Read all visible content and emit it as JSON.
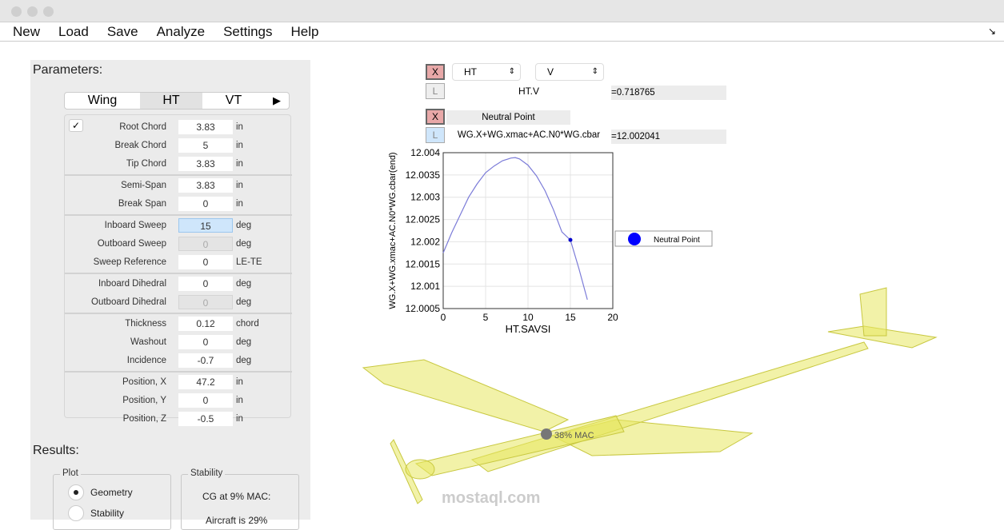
{
  "menu": [
    "New",
    "Load",
    "Save",
    "Analyze",
    "Settings",
    "Help"
  ],
  "parameters": {
    "title": "Parameters:",
    "tabs": [
      "Wing",
      "HT",
      "VT"
    ],
    "active_tab": "HT",
    "more_icon": "play-triangle",
    "checkbox_checked": true,
    "rows": [
      {
        "label": "Root Chord",
        "value": "3.83",
        "unit": "in"
      },
      {
        "label": "Break Chord",
        "value": "5",
        "unit": "in"
      },
      {
        "label": "Tip Chord",
        "value": "3.83",
        "unit": "in"
      },
      {
        "label": "Semi-Span",
        "value": "3.83",
        "unit": "in"
      },
      {
        "label": "Break Span",
        "value": "0",
        "unit": "in"
      },
      {
        "label": "Inboard Sweep",
        "value": "15",
        "unit": "deg",
        "state": "selected"
      },
      {
        "label": "Outboard Sweep",
        "value": "0",
        "unit": "deg",
        "state": "disabled"
      },
      {
        "label": "Sweep Reference",
        "value": "0",
        "unit": "LE-TE"
      },
      {
        "label": "Inboard Dihedral",
        "value": "0",
        "unit": "deg"
      },
      {
        "label": "Outboard Dihedral",
        "value": "0",
        "unit": "deg",
        "state": "disabled"
      },
      {
        "label": "Thickness",
        "value": "0.12",
        "unit": "chord"
      },
      {
        "label": "Washout",
        "value": "0",
        "unit": "deg"
      },
      {
        "label": "Incidence",
        "value": "-0.7",
        "unit": "deg"
      },
      {
        "label": "Position, X",
        "value": "47.2",
        "unit": "in"
      },
      {
        "label": "Position, Y",
        "value": "0",
        "unit": "in"
      },
      {
        "label": "Position, Z",
        "value": "-0.5",
        "unit": "in"
      }
    ]
  },
  "results": {
    "title": "Results:",
    "plot_group": "Plot",
    "plot_options": [
      "Geometry",
      "Stability"
    ],
    "plot_selected": "Geometry",
    "stability_group": "Stability",
    "stability_lines": [
      "CG at 9% MAC:",
      "Aircraft is 29%"
    ]
  },
  "plot_controls": {
    "x_btn": "X",
    "l_btn": "L",
    "select1": "HT",
    "select2": "V",
    "expr1": "HT.V",
    "readout1": "=0.718765",
    "label2": "Neutral Point",
    "expr2": "WG.X+WG.xmac+AC.N0*WG.cbar",
    "readout2": "=12.002041"
  },
  "chart_data": {
    "type": "line",
    "xlabel": "HT.SAVSI",
    "ylabel": "WG.X+WG.xmac+AC.N0*WG.cbar(end)",
    "xlim": [
      0,
      20
    ],
    "ylim": [
      12.0005,
      12.004
    ],
    "xticks": [
      "0",
      "5",
      "10",
      "15",
      "20"
    ],
    "yticks": [
      "12.0005",
      "12.001",
      "12.0015",
      "12.002",
      "12.0025",
      "12.003",
      "12.0035",
      "12.004"
    ],
    "grid": true,
    "series": [
      {
        "x": [
          0,
          1,
          2,
          3,
          4,
          5,
          6,
          7,
          8,
          8.5,
          9,
          10,
          11,
          12,
          13,
          14,
          15,
          16,
          17
        ],
        "y": [
          12.00175,
          12.0022,
          12.0026,
          12.003,
          12.0033,
          12.00355,
          12.0037,
          12.00382,
          12.00388,
          12.00389,
          12.00386,
          12.00372,
          12.00348,
          12.00315,
          12.00272,
          12.00222,
          12.00204,
          12.0014,
          12.0007
        ],
        "color": "#7b7bd8"
      }
    ],
    "marker": {
      "x": 15,
      "y": 12.002041,
      "color": "#0000cc"
    },
    "legend": {
      "entries": [
        "Neutral Point"
      ],
      "placement": "outside-right",
      "marker_color": "#0000ff"
    }
  },
  "model": {
    "cg_label": "38% MAC",
    "color": "#e8e860"
  },
  "watermark": "mostaql.com"
}
